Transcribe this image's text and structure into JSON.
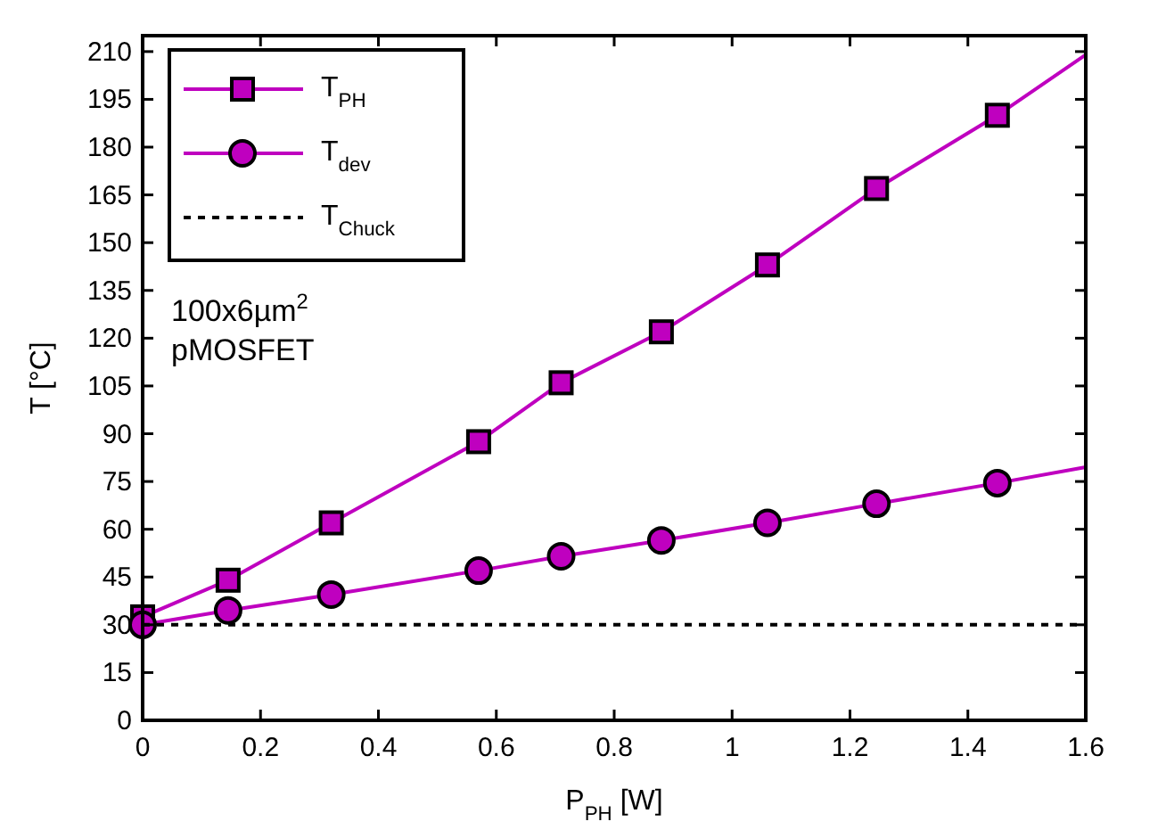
{
  "chart_data": {
    "type": "scatter",
    "xlabel": "P$_{PH}$ [W]",
    "ylabel": "T [°C]",
    "xlim": [
      0,
      1.6
    ],
    "ylim": [
      0,
      215
    ],
    "xticks": [
      0,
      0.2,
      0.4,
      0.6,
      0.8,
      1,
      1.2,
      1.4,
      1.6
    ],
    "yticks": [
      0,
      15,
      30,
      45,
      60,
      75,
      90,
      105,
      120,
      135,
      150,
      165,
      180,
      195,
      210
    ],
    "grid": false,
    "legend": "top left",
    "series": [
      {
        "type": "line",
        "marker": "none",
        "line_style": "solid",
        "color": "#bf00bf",
        "x": [
          0,
          0.145,
          0.32,
          0.57,
          0.71,
          0.88,
          1.06,
          1.245,
          1.45,
          1.6
        ],
        "values": [
          32.5,
          44,
          62,
          87.5,
          106,
          122,
          143,
          167,
          190,
          209
        ]
      },
      {
        "type": "line",
        "marker": "none",
        "line_style": "solid",
        "color": "#bf00bf",
        "x": [
          0,
          0.145,
          0.32,
          0.57,
          0.71,
          0.88,
          1.06,
          1.245,
          1.45,
          1.6
        ],
        "values": [
          30,
          34.5,
          39.5,
          47,
          51.5,
          56.5,
          62,
          68,
          74.5,
          79.5
        ]
      },
      {
        "name": "T$_{PH}$",
        "marker": "square",
        "color": "#bf00bf",
        "x": [
          0,
          0.145,
          0.32,
          0.57,
          0.71,
          0.88,
          1.06,
          1.245,
          1.45
        ],
        "values": [
          32.5,
          44,
          62,
          87.5,
          106,
          122,
          143,
          167,
          190
        ]
      },
      {
        "name": "T$_{dev}$",
        "marker": "circle",
        "color": "#bf00bf",
        "x": [
          0,
          0.145,
          0.32,
          0.57,
          0.71,
          0.88,
          1.06,
          1.245,
          1.45
        ],
        "values": [
          30,
          34.5,
          39.5,
          47,
          51.5,
          56.5,
          62,
          68,
          74.5
        ]
      },
      {
        "name": "T$_{Chuck}$",
        "type": "line",
        "marker": "none",
        "line_style": "dashed",
        "color": "#000000",
        "x": [
          0,
          1.6
        ],
        "values": [
          30,
          30
        ]
      }
    ],
    "annotations": [
      "100x6µm$^{2}$",
      "pMOSFET"
    ]
  }
}
